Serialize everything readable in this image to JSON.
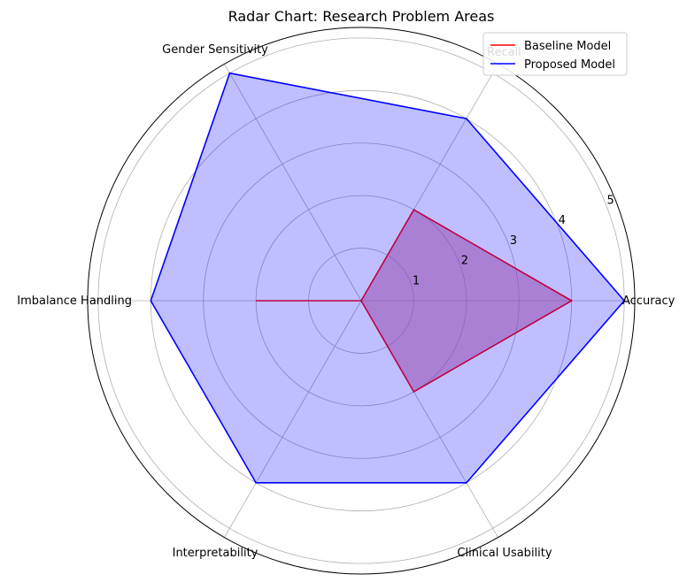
{
  "chart_data": {
    "type": "radar",
    "title": "Radar Chart: Research Problem Areas",
    "categories": [
      "Accuracy",
      "Recall",
      "Gender Sensitivity",
      "Imbalance Handling",
      "Interpretability",
      "Clinical Usability"
    ],
    "series": [
      {
        "name": "Baseline Model",
        "color": "#ff0000",
        "values": [
          4,
          2,
          0,
          2,
          0,
          2
        ],
        "fill": false
      },
      {
        "name": "Proposed Model",
        "color": "#0000ff",
        "values": [
          5,
          4,
          5,
          4,
          4,
          4
        ],
        "fill": true,
        "fill_color": "#0000ff",
        "fill_opacity": 0.25
      }
    ],
    "r_ticks": [
      "1",
      "2",
      "3",
      "4",
      "5"
    ],
    "r_tick_values": [
      1,
      2,
      3,
      4,
      5
    ],
    "r_lim": [
      0,
      5.2
    ],
    "grid": true,
    "legend_position": "top-right"
  }
}
